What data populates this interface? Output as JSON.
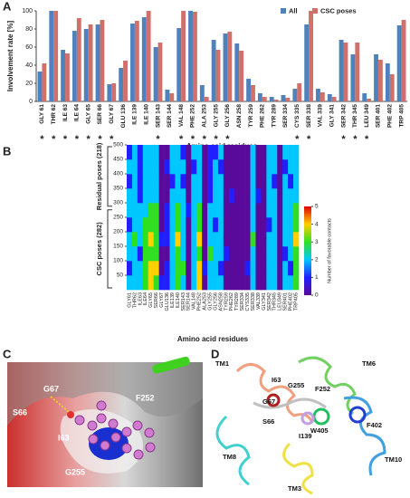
{
  "panels": [
    "A",
    "B",
    "C",
    "D"
  ],
  "chart_data": [
    {
      "type": "bar",
      "y_label": "Involvement rate [%]",
      "x_label": "Amino acid residues",
      "categories": [
        "GLY 61",
        "THR 62",
        "ILE 63",
        "ILE 64",
        "GLY 65",
        "SER 66",
        "GLY 67",
        "GLU 136",
        "ILE 139",
        "ILE 140",
        "SER 143",
        "SER 144",
        "VAL 148",
        "PHE 252",
        "ALA 253",
        "GLY 255",
        "GLY 256",
        "ASN 258",
        "TYR 259",
        "PHE 262",
        "TYR 289",
        "SER 334",
        "CYS 335",
        "SER 338",
        "VAL 339",
        "GLY 341",
        "SER 342",
        "THR 345",
        "LEU 349",
        "SER 401",
        "PHE 402",
        "TRP 405"
      ],
      "series": [
        {
          "name": "All",
          "color": "#4f81bd",
          "values": [
            33,
            100,
            57,
            78,
            80,
            85,
            19,
            37,
            86,
            93,
            60,
            13,
            81,
            100,
            18,
            68,
            75,
            64,
            25,
            9,
            5,
            7,
            14,
            85,
            14,
            8,
            68,
            52,
            9,
            52,
            42,
            84
          ]
        },
        {
          "name": "CSC poses",
          "color": "#d0706b",
          "values": [
            42,
            100,
            53,
            92,
            85,
            90,
            20,
            45,
            89,
            100,
            65,
            9,
            100,
            99,
            5,
            57,
            77,
            56,
            18,
            5,
            2,
            4,
            20,
            100,
            10,
            5,
            65,
            65,
            3,
            46,
            30,
            90
          ]
        }
      ],
      "markers": [
        "*",
        "*",
        "*",
        "*",
        "*",
        "*",
        "*",
        null,
        null,
        null,
        "*",
        null,
        "*",
        "*",
        "*",
        "*",
        "*",
        null,
        null,
        null,
        null,
        null,
        "*",
        "*",
        null,
        null,
        "*",
        "*",
        "*",
        null,
        null,
        null
      ],
      "ylim": [
        0,
        100
      ],
      "yticks": [
        0,
        20,
        40,
        60,
        80,
        100
      ],
      "legend": "top-right"
    },
    {
      "type": "heatmap",
      "x_label": "Amino acid residues",
      "colorbar_label": "Number of favorable contacts",
      "groups": [
        "Residual poses (218)",
        "CSC poses (282)"
      ],
      "categories": [
        "GLY61",
        "THR62",
        "ILE63",
        "ILE64",
        "GLY65",
        "SER66",
        "GLY67",
        "GLU136",
        "ILE139",
        "ILE140",
        "SER143",
        "SER144",
        "VAL148",
        "PHE252",
        "ALA253",
        "GLY255",
        "GLY256",
        "ASN258",
        "TYR259",
        "PHE262",
        "TYR289",
        "SER334",
        "CYS335",
        "SER338",
        "VAL339",
        "GLY341",
        "SER342",
        "THR345",
        "LEU349",
        "SER401",
        "PHE402",
        "TRP405"
      ],
      "ybins": [
        0,
        50,
        100,
        150,
        200,
        250,
        300,
        350,
        400,
        450,
        500
      ],
      "z": [
        [
          2,
          2,
          2,
          3,
          4,
          3,
          1,
          1,
          2,
          3,
          2,
          0,
          2,
          4,
          0,
          2,
          2,
          2,
          0,
          0,
          0,
          0,
          0,
          2,
          0,
          0,
          2,
          2,
          0,
          2,
          2,
          3
        ],
        [
          1,
          2,
          2,
          3,
          4,
          4,
          0,
          1,
          2,
          3,
          3,
          0,
          2,
          4,
          1,
          2,
          2,
          1,
          0,
          0,
          0,
          0,
          1,
          2,
          0,
          0,
          2,
          2,
          0,
          2,
          1,
          3
        ],
        [
          2,
          2,
          1,
          3,
          3,
          3,
          0,
          0,
          2,
          3,
          2,
          0,
          2,
          3,
          0,
          3,
          2,
          2,
          1,
          0,
          0,
          0,
          0,
          2,
          0,
          0,
          2,
          2,
          0,
          1,
          2,
          3
        ],
        [
          2,
          3,
          2,
          3,
          4,
          3,
          1,
          1,
          2,
          4,
          2,
          0,
          2,
          4,
          0,
          2,
          2,
          2,
          0,
          0,
          0,
          0,
          0,
          3,
          0,
          0,
          2,
          2,
          0,
          2,
          2,
          4
        ],
        [
          1,
          2,
          2,
          3,
          3,
          3,
          0,
          1,
          2,
          3,
          2,
          0,
          2,
          3,
          0,
          2,
          1,
          2,
          0,
          0,
          0,
          0,
          0,
          2,
          0,
          0,
          1,
          2,
          0,
          2,
          2,
          3
        ],
        [
          2,
          2,
          2,
          2,
          3,
          3,
          0,
          1,
          2,
          3,
          2,
          1,
          2,
          3,
          0,
          2,
          2,
          2,
          0,
          0,
          0,
          0,
          0,
          2,
          0,
          0,
          2,
          2,
          0,
          2,
          2,
          3
        ],
        [
          2,
          2,
          1,
          2,
          2,
          2,
          0,
          0,
          2,
          2,
          2,
          0,
          2,
          2,
          0,
          1,
          2,
          2,
          0,
          1,
          0,
          0,
          0,
          2,
          1,
          0,
          2,
          2,
          0,
          2,
          2,
          2
        ],
        [
          1,
          2,
          1,
          2,
          2,
          2,
          0,
          0,
          1,
          2,
          1,
          0,
          2,
          2,
          0,
          1,
          2,
          2,
          0,
          0,
          0,
          0,
          0,
          2,
          0,
          0,
          2,
          1,
          0,
          2,
          1,
          2
        ],
        [
          2,
          2,
          1,
          2,
          2,
          2,
          0,
          1,
          2,
          2,
          2,
          0,
          1,
          2,
          0,
          1,
          2,
          1,
          0,
          0,
          0,
          0,
          0,
          2,
          0,
          0,
          2,
          2,
          0,
          1,
          2,
          2
        ],
        [
          1,
          2,
          1,
          2,
          2,
          2,
          0,
          0,
          2,
          2,
          1,
          0,
          2,
          2,
          0,
          1,
          1,
          2,
          0,
          0,
          0,
          0,
          0,
          2,
          0,
          0,
          2,
          2,
          0,
          2,
          2,
          2
        ]
      ],
      "ylim": [
        0,
        500
      ],
      "yticks": [
        50,
        100,
        150,
        200,
        250,
        300,
        350,
        400,
        450,
        500
      ],
      "zlim": [
        0,
        5
      ],
      "zticks": [
        0,
        1,
        2,
        3,
        4,
        5
      ]
    }
  ],
  "panel_c": {
    "labels": [
      "G67",
      "S66",
      "I63",
      "F252",
      "G255"
    ]
  },
  "panel_d": {
    "labels": [
      "TM1",
      "I63",
      "G255",
      "TM6",
      "G67",
      "F252",
      "S66",
      "W405",
      "F402",
      "TM8",
      "I139",
      "TM10",
      "TM3"
    ]
  }
}
